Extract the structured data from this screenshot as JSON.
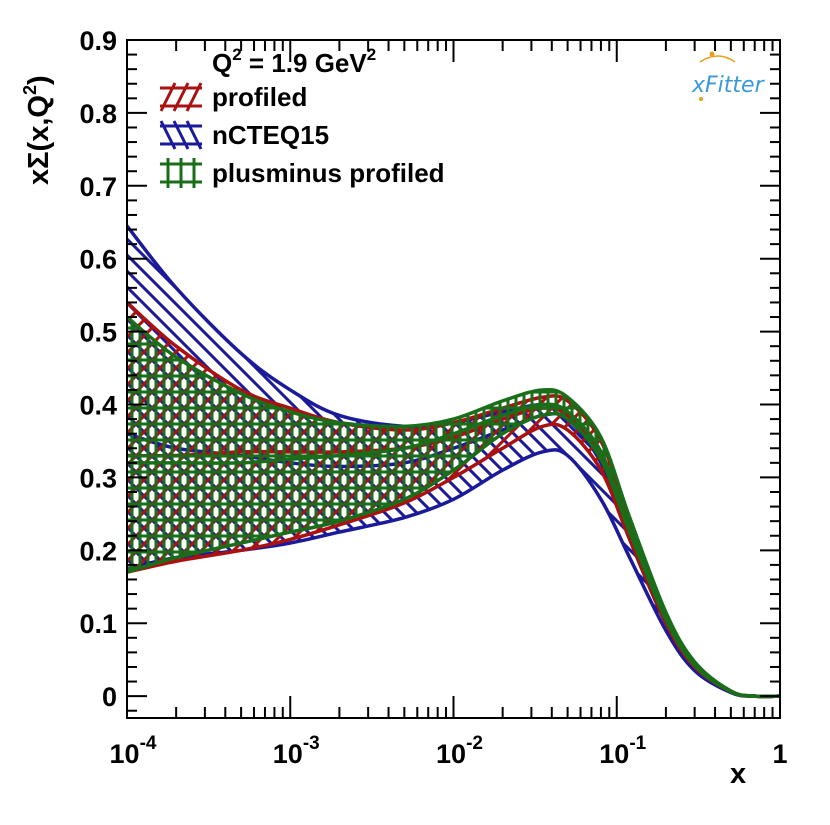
{
  "chart_data": {
    "type": "area",
    "title": "",
    "annotation": {
      "text": "Q",
      "sup1": "2",
      "rest": " = 1.9 GeV",
      "sup2": "2"
    },
    "logo": {
      "x": "x",
      "rest": "Fitter"
    },
    "xlabel": "x",
    "ylabel": {
      "pre": "x",
      "sigma": "Σ",
      "mid": "(x,Q",
      "sup": "2",
      "post": ")"
    },
    "xscale": "log",
    "xlim": [
      0.0001,
      1
    ],
    "ylim": [
      -0.03,
      0.9
    ],
    "x_ticks": [
      {
        "base": "10",
        "exp": "-4",
        "value": 0.0001
      },
      {
        "base": "10",
        "exp": "-3",
        "value": 0.001
      },
      {
        "base": "10",
        "exp": "-2",
        "value": 0.01
      },
      {
        "base": "10",
        "exp": "-1",
        "value": 0.1
      },
      {
        "base": "1",
        "exp": "",
        "value": 1
      }
    ],
    "y_ticks": [
      {
        "label": "0",
        "value": 0
      },
      {
        "label": "0.1",
        "value": 0.1
      },
      {
        "label": "0.2",
        "value": 0.2
      },
      {
        "label": "0.3",
        "value": 0.3
      },
      {
        "label": "0.4",
        "value": 0.4
      },
      {
        "label": "0.5",
        "value": 0.5
      },
      {
        "label": "0.6",
        "value": 0.6
      },
      {
        "label": "0.7",
        "value": 0.7
      },
      {
        "label": "0.8",
        "value": 0.8
      },
      {
        "label": "0.9",
        "value": 0.9
      }
    ],
    "x": [
      0.0001,
      0.0002,
      0.0005,
      0.001,
      0.002,
      0.005,
      0.01,
      0.02,
      0.035,
      0.05,
      0.08,
      0.12,
      0.2,
      0.3,
      0.5,
      0.7,
      1.0
    ],
    "series": [
      {
        "name": "nCTEQ15",
        "color": "#1a1a9a",
        "hatch": "backslash",
        "lower": [
          0.175,
          0.19,
          0.2,
          0.21,
          0.225,
          0.245,
          0.27,
          0.31,
          0.335,
          0.33,
          0.27,
          0.19,
          0.09,
          0.035,
          0.005,
          0.0,
          0.0
        ],
        "central": [
          0.36,
          0.34,
          0.33,
          0.32,
          0.315,
          0.32,
          0.34,
          0.365,
          0.385,
          0.38,
          0.32,
          0.215,
          0.1,
          0.04,
          0.005,
          0.0,
          0.0
        ],
        "upper": [
          0.645,
          0.56,
          0.47,
          0.42,
          0.385,
          0.37,
          0.375,
          0.39,
          0.4,
          0.39,
          0.335,
          0.23,
          0.11,
          0.045,
          0.006,
          0.0,
          0.0
        ]
      },
      {
        "name": "profiled",
        "color": "#aa1111",
        "hatch": "slash",
        "lower": [
          0.17,
          0.185,
          0.2,
          0.215,
          0.235,
          0.265,
          0.3,
          0.34,
          0.37,
          0.365,
          0.31,
          0.215,
          0.1,
          0.04,
          0.006,
          0.0,
          0.0
        ],
        "central": [
          0.33,
          0.33,
          0.335,
          0.335,
          0.335,
          0.34,
          0.355,
          0.38,
          0.395,
          0.385,
          0.33,
          0.225,
          0.105,
          0.042,
          0.006,
          0.0,
          0.0
        ],
        "upper": [
          0.54,
          0.48,
          0.42,
          0.395,
          0.375,
          0.365,
          0.375,
          0.395,
          0.41,
          0.405,
          0.35,
          0.24,
          0.112,
          0.046,
          0.007,
          0.0,
          0.0
        ]
      },
      {
        "name": "plusminus profiled",
        "color": "#1a6e1a",
        "hatch": "cross",
        "lower": [
          0.17,
          0.19,
          0.21,
          0.225,
          0.24,
          0.27,
          0.31,
          0.36,
          0.385,
          0.38,
          0.325,
          0.225,
          0.105,
          0.042,
          0.006,
          0.0,
          0.0
        ],
        "central": [
          0.32,
          0.32,
          0.32,
          0.325,
          0.33,
          0.34,
          0.36,
          0.385,
          0.4,
          0.39,
          0.335,
          0.23,
          0.108,
          0.044,
          0.006,
          0.0,
          0.0
        ],
        "upper": [
          0.52,
          0.465,
          0.415,
          0.39,
          0.375,
          0.37,
          0.38,
          0.405,
          0.42,
          0.41,
          0.355,
          0.245,
          0.115,
          0.047,
          0.007,
          0.0,
          0.0
        ]
      }
    ],
    "legend": [
      {
        "label": "profiled",
        "color": "#aa1111",
        "hatch": "slash"
      },
      {
        "label": "nCTEQ15",
        "color": "#1a1a9a",
        "hatch": "backslash"
      },
      {
        "label": "plusminus profiled",
        "color": "#1a6e1a",
        "hatch": "cross"
      }
    ],
    "legend_position": "top-left",
    "grid": false
  }
}
